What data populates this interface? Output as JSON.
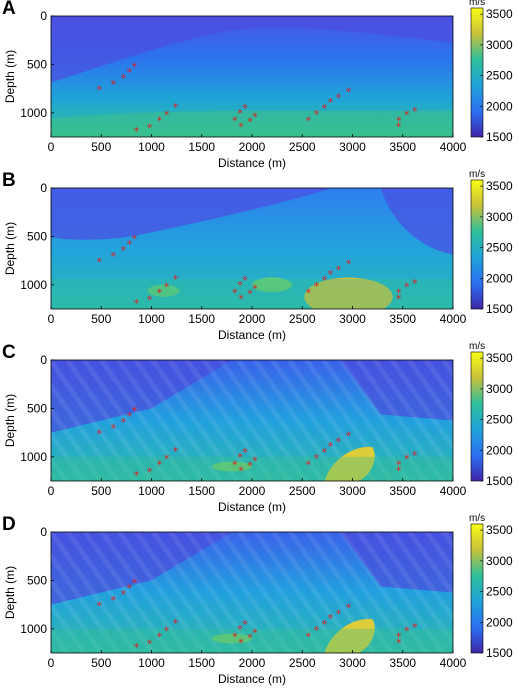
{
  "chart_data": [
    {
      "type": "heatmap",
      "panel": "A",
      "xlabel": "Distance (m)",
      "ylabel": "Depth (m)",
      "xlim": [
        0,
        4000
      ],
      "ylim": [
        1250,
        0
      ],
      "x_ticks": [
        0,
        500,
        1000,
        1500,
        2000,
        2500,
        3000,
        3500,
        4000
      ],
      "y_ticks": [
        0,
        500,
        1000
      ],
      "colorbar": {
        "unit": "m/s",
        "range": [
          1500,
          3600
        ],
        "ticks": [
          1500,
          2000,
          2500,
          3000,
          3500
        ],
        "colormap": "parula"
      },
      "field_style": "smooth",
      "markers": {
        "symbol": "*",
        "color": "#e31a1c"
      }
    },
    {
      "type": "heatmap",
      "panel": "B",
      "xlabel": "Distance (m)",
      "ylabel": "Depth (m)",
      "xlim": [
        0,
        4000
      ],
      "ylim": [
        1250,
        0
      ],
      "x_ticks": [
        0,
        500,
        1000,
        1500,
        2000,
        2500,
        3000,
        3500,
        4000
      ],
      "y_ticks": [
        0,
        500,
        1000
      ],
      "colorbar": {
        "unit": "m/s",
        "range": [
          1500,
          3600
        ],
        "ticks": [
          1500,
          2000,
          2500,
          3000,
          3500
        ],
        "colormap": "parula"
      },
      "field_style": "blobs",
      "markers": {
        "symbol": "*",
        "color": "#e31a1c"
      }
    },
    {
      "type": "heatmap",
      "panel": "C",
      "xlabel": "Distance (m)",
      "ylabel": "Depth (m)",
      "xlim": [
        0,
        4000
      ],
      "ylim": [
        1250,
        0
      ],
      "x_ticks": [
        0,
        500,
        1000,
        1500,
        2000,
        2500,
        3000,
        3500,
        4000
      ],
      "y_ticks": [
        0,
        500,
        1000
      ],
      "colorbar": {
        "unit": "m/s",
        "range": [
          1500,
          3600
        ],
        "ticks": [
          1500,
          2000,
          2500,
          3000,
          3500
        ],
        "colormap": "parula"
      },
      "field_style": "layered",
      "markers": {
        "symbol": "*",
        "color": "#e31a1c"
      }
    },
    {
      "type": "heatmap",
      "panel": "D",
      "xlabel": "Distance (m)",
      "ylabel": "Depth (m)",
      "xlim": [
        0,
        4000
      ],
      "ylim": [
        1250,
        0
      ],
      "x_ticks": [
        0,
        500,
        1000,
        1500,
        2000,
        2500,
        3000,
        3500,
        4000
      ],
      "y_ticks": [
        0,
        500,
        1000
      ],
      "colorbar": {
        "unit": "m/s",
        "range": [
          1500,
          3600
        ],
        "ticks": [
          1500,
          2000,
          2500,
          3000,
          3500
        ],
        "colormap": "parula"
      },
      "field_style": "layered",
      "markers": {
        "symbol": "*",
        "color": "#e31a1c"
      }
    }
  ],
  "markers_xy": [
    [
      480,
      760
    ],
    [
      620,
      700
    ],
    [
      720,
      640
    ],
    [
      780,
      580
    ],
    [
      830,
      520
    ],
    [
      850,
      1190
    ],
    [
      980,
      1150
    ],
    [
      1080,
      1080
    ],
    [
      1150,
      1020
    ],
    [
      1240,
      940
    ],
    [
      1830,
      1080
    ],
    [
      1880,
      1000
    ],
    [
      1930,
      950
    ],
    [
      1890,
      1140
    ],
    [
      1980,
      1090
    ],
    [
      2030,
      1040
    ],
    [
      2560,
      1080
    ],
    [
      2640,
      1010
    ],
    [
      2720,
      950
    ],
    [
      2780,
      890
    ],
    [
      2860,
      840
    ],
    [
      2960,
      780
    ],
    [
      3460,
      1080
    ],
    [
      3540,
      1020
    ],
    [
      3620,
      980
    ],
    [
      3460,
      1140
    ]
  ]
}
